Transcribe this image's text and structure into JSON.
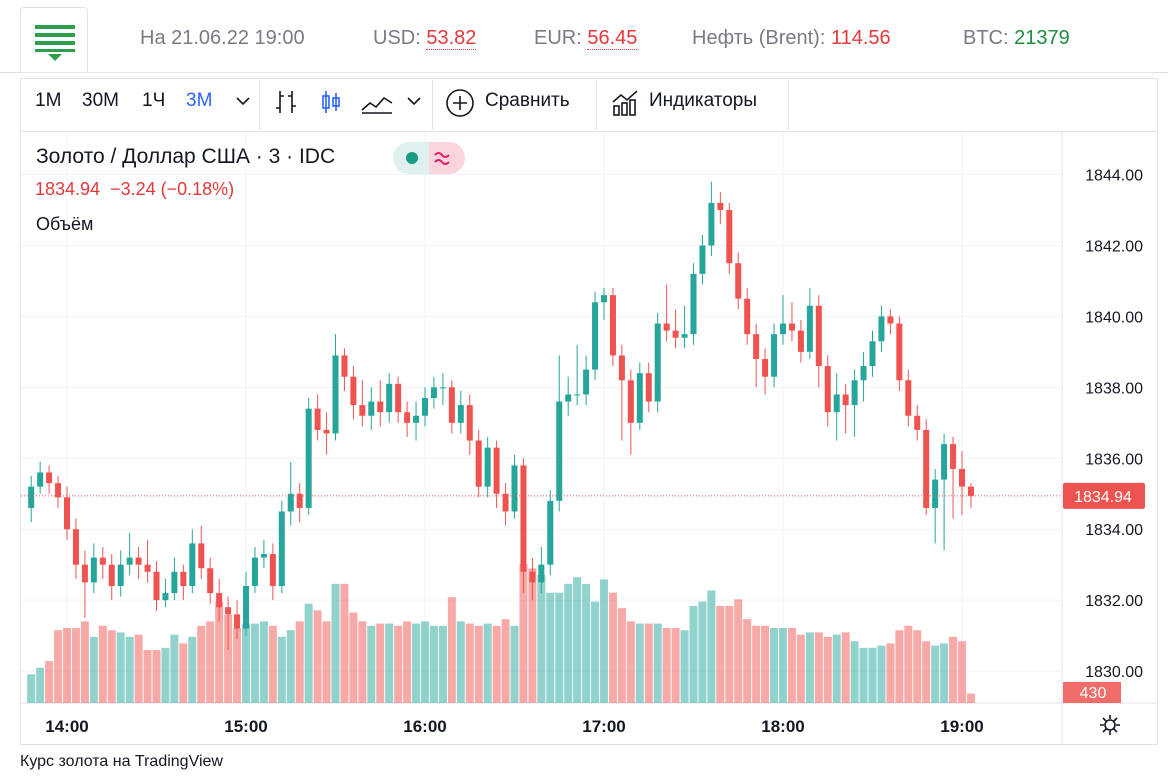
{
  "header": {
    "date": "На 21.06.22 19:00",
    "quotes": [
      {
        "label": "USD:",
        "value": "53.82"
      },
      {
        "label": "EUR:",
        "value": "56.45"
      },
      {
        "label": "Нефть (Brent):",
        "value": "114.56"
      },
      {
        "label": "BTC:",
        "value": "21379"
      }
    ]
  },
  "toolbar": {
    "intervals": [
      "1M",
      "30M",
      "1Ч",
      "3M"
    ],
    "compare": "Сравнить",
    "indicators": "Индикаторы"
  },
  "legend": {
    "symbol": "Золото / Доллар США · 3 · IDC",
    "change": "−3.24 (−0.18%)",
    "volume_title": "Объём"
  },
  "footer": "Курс золота на TradingView",
  "chart_data": {
    "type": "candlestick",
    "up_color": "#26a69a",
    "down_color": "#ef5350",
    "ylim": [
      1829.1,
      1845.2
    ],
    "yticks": [
      {
        "value": 1830,
        "label": "1830.00"
      },
      {
        "value": 1832,
        "label": "1832.00"
      },
      {
        "value": 1834,
        "label": "1834.00"
      },
      {
        "value": 1836,
        "label": "1836.00"
      },
      {
        "value": 1838,
        "label": "1838.00"
      },
      {
        "value": 1840,
        "label": "1840.00"
      },
      {
        "value": 1842,
        "label": "1842.00"
      },
      {
        "value": 1844,
        "label": "1844.00"
      }
    ],
    "xticks": [
      "14:00",
      "15:00",
      "16:00",
      "17:00",
      "18:00",
      "19:00"
    ],
    "vlim": [
      0,
      16000
    ],
    "x": [
      "13:48",
      "13:51",
      "13:54",
      "13:57",
      "14:00",
      "14:03",
      "14:06",
      "14:09",
      "14:12",
      "14:15",
      "14:18",
      "14:21",
      "14:24",
      "14:27",
      "14:30",
      "14:33",
      "14:36",
      "14:39",
      "14:42",
      "14:45",
      "14:48",
      "14:51",
      "14:54",
      "14:57",
      "15:00",
      "15:03",
      "15:06",
      "15:09",
      "15:12",
      "15:15",
      "15:18",
      "15:21",
      "15:24",
      "15:27",
      "15:30",
      "15:33",
      "15:36",
      "15:39",
      "15:42",
      "15:45",
      "15:48",
      "15:51",
      "15:54",
      "15:57",
      "16:00",
      "16:03",
      "16:06",
      "16:09",
      "16:12",
      "16:15",
      "16:18",
      "16:21",
      "16:24",
      "16:27",
      "16:30",
      "16:33",
      "16:36",
      "16:39",
      "16:42",
      "16:45",
      "16:48",
      "16:51",
      "16:54",
      "16:57",
      "17:00",
      "17:03",
      "17:06",
      "17:09",
      "17:12",
      "17:15",
      "17:18",
      "17:21",
      "17:24",
      "17:27",
      "17:30",
      "17:33",
      "17:36",
      "17:39",
      "17:42",
      "17:45",
      "17:48",
      "17:51",
      "17:54",
      "17:57",
      "18:00",
      "18:03",
      "18:06",
      "18:09",
      "18:12",
      "18:15",
      "18:18",
      "18:21",
      "18:24",
      "18:27",
      "18:30",
      "18:33",
      "18:36",
      "18:39",
      "18:42",
      "18:45",
      "18:48",
      "18:51",
      "18:54",
      "18:57",
      "19:00",
      "19:03"
    ],
    "candles": [
      [
        1834.6,
        1835.5,
        1834.2,
        1835.2
      ],
      [
        1835.2,
        1835.9,
        1835.0,
        1835.6
      ],
      [
        1835.6,
        1835.8,
        1835.0,
        1835.3
      ],
      [
        1835.3,
        1835.5,
        1834.6,
        1834.9
      ],
      [
        1834.9,
        1835.2,
        1833.7,
        1834.0
      ],
      [
        1834.0,
        1834.3,
        1832.6,
        1833.0
      ],
      [
        1833.0,
        1833.4,
        1831.5,
        1832.5
      ],
      [
        1832.5,
        1833.6,
        1832.2,
        1833.2
      ],
      [
        1833.2,
        1833.5,
        1832.6,
        1833.0
      ],
      [
        1833.0,
        1833.3,
        1832.0,
        1832.4
      ],
      [
        1832.4,
        1833.4,
        1832.1,
        1833.0
      ],
      [
        1833.0,
        1833.9,
        1832.7,
        1833.2
      ],
      [
        1833.2,
        1833.5,
        1832.6,
        1833.0
      ],
      [
        1833.0,
        1833.7,
        1832.5,
        1832.8
      ],
      [
        1832.8,
        1833.1,
        1831.7,
        1832.0
      ],
      [
        1832.0,
        1832.6,
        1831.8,
        1832.2
      ],
      [
        1832.2,
        1833.2,
        1832.0,
        1832.8
      ],
      [
        1832.8,
        1833.0,
        1832.0,
        1832.4
      ],
      [
        1832.4,
        1834.0,
        1832.2,
        1833.6
      ],
      [
        1833.6,
        1834.1,
        1832.6,
        1832.9
      ],
      [
        1832.9,
        1833.2,
        1831.9,
        1832.2
      ],
      [
        1832.2,
        1832.6,
        1831.4,
        1831.8
      ],
      [
        1831.8,
        1832.1,
        1830.6,
        1831.6
      ],
      [
        1831.6,
        1832.0,
        1830.9,
        1831.2
      ],
      [
        1831.2,
        1832.8,
        1831.0,
        1832.4
      ],
      [
        1832.4,
        1833.5,
        1832.2,
        1833.2
      ],
      [
        1833.2,
        1833.7,
        1832.9,
        1833.3
      ],
      [
        1833.3,
        1833.6,
        1832.0,
        1832.4
      ],
      [
        1832.4,
        1834.8,
        1832.2,
        1834.5
      ],
      [
        1834.5,
        1835.9,
        1834.1,
        1835.0
      ],
      [
        1835.0,
        1835.3,
        1834.2,
        1834.6
      ],
      [
        1834.6,
        1837.7,
        1834.4,
        1837.4
      ],
      [
        1837.4,
        1837.8,
        1836.5,
        1836.8
      ],
      [
        1836.8,
        1837.3,
        1836.1,
        1836.7
      ],
      [
        1836.7,
        1839.5,
        1836.5,
        1838.9
      ],
      [
        1838.9,
        1839.1,
        1837.9,
        1838.3
      ],
      [
        1838.3,
        1838.6,
        1837.1,
        1837.5
      ],
      [
        1837.5,
        1838.2,
        1836.9,
        1837.2
      ],
      [
        1837.2,
        1838.0,
        1836.8,
        1837.6
      ],
      [
        1837.6,
        1838.2,
        1836.9,
        1837.3
      ],
      [
        1837.3,
        1838.4,
        1837.0,
        1838.1
      ],
      [
        1838.1,
        1838.3,
        1837.0,
        1837.3
      ],
      [
        1837.3,
        1837.6,
        1836.6,
        1837.0
      ],
      [
        1837.0,
        1837.6,
        1836.5,
        1837.2
      ],
      [
        1837.2,
        1838.0,
        1836.9,
        1837.7
      ],
      [
        1837.7,
        1838.3,
        1837.4,
        1838.0
      ],
      [
        1838.0,
        1838.4,
        1837.5,
        1838.0
      ],
      [
        1838.0,
        1838.2,
        1836.7,
        1837.0
      ],
      [
        1837.0,
        1837.9,
        1836.7,
        1837.5
      ],
      [
        1837.5,
        1837.8,
        1836.1,
        1836.5
      ],
      [
        1836.5,
        1836.8,
        1834.9,
        1835.2
      ],
      [
        1835.2,
        1836.6,
        1834.9,
        1836.3
      ],
      [
        1836.3,
        1836.5,
        1834.6,
        1835.0
      ],
      [
        1835.0,
        1835.3,
        1834.1,
        1834.5
      ],
      [
        1834.5,
        1836.1,
        1834.3,
        1835.8
      ],
      [
        1835.8,
        1836.0,
        1832.2,
        1832.8
      ],
      [
        1832.8,
        1833.2,
        1832.0,
        1832.5
      ],
      [
        1832.5,
        1833.5,
        1832.2,
        1833.0
      ],
      [
        1833.0,
        1835.1,
        1832.7,
        1834.8
      ],
      [
        1834.8,
        1838.9,
        1834.5,
        1837.6
      ],
      [
        1837.6,
        1838.3,
        1837.2,
        1837.8
      ],
      [
        1837.8,
        1839.2,
        1837.5,
        1837.8
      ],
      [
        1837.8,
        1838.9,
        1837.5,
        1838.5
      ],
      [
        1838.5,
        1840.7,
        1838.2,
        1840.4
      ],
      [
        1840.4,
        1840.8,
        1839.9,
        1840.6
      ],
      [
        1840.6,
        1840.8,
        1838.6,
        1838.9
      ],
      [
        1838.9,
        1839.2,
        1836.5,
        1838.2
      ],
      [
        1838.2,
        1838.5,
        1836.1,
        1837.0
      ],
      [
        1837.0,
        1838.7,
        1836.8,
        1838.4
      ],
      [
        1838.4,
        1838.7,
        1837.3,
        1837.6
      ],
      [
        1837.6,
        1840.1,
        1837.3,
        1839.8
      ],
      [
        1839.8,
        1840.9,
        1839.3,
        1839.6
      ],
      [
        1839.6,
        1840.2,
        1839.1,
        1839.4
      ],
      [
        1839.4,
        1840.3,
        1839.1,
        1839.5
      ],
      [
        1839.5,
        1841.5,
        1839.2,
        1841.2
      ],
      [
        1841.2,
        1842.3,
        1840.9,
        1842.0
      ],
      [
        1842.0,
        1843.8,
        1841.7,
        1843.2
      ],
      [
        1843.2,
        1843.5,
        1842.6,
        1843.0
      ],
      [
        1843.0,
        1843.2,
        1841.2,
        1841.5
      ],
      [
        1841.5,
        1841.8,
        1840.2,
        1840.5
      ],
      [
        1840.5,
        1840.8,
        1839.2,
        1839.5
      ],
      [
        1839.5,
        1839.8,
        1838.0,
        1838.8
      ],
      [
        1838.8,
        1839.1,
        1837.8,
        1838.3
      ],
      [
        1838.3,
        1839.8,
        1838.0,
        1839.5
      ],
      [
        1839.5,
        1840.6,
        1839.2,
        1839.8
      ],
      [
        1839.8,
        1840.4,
        1839.3,
        1839.6
      ],
      [
        1839.6,
        1839.9,
        1838.7,
        1839.0
      ],
      [
        1839.0,
        1840.8,
        1838.8,
        1840.3
      ],
      [
        1840.3,
        1840.6,
        1838.0,
        1838.6
      ],
      [
        1838.6,
        1838.9,
        1836.9,
        1837.3
      ],
      [
        1837.3,
        1838.4,
        1836.5,
        1837.8
      ],
      [
        1837.8,
        1838.1,
        1836.7,
        1837.5
      ],
      [
        1837.5,
        1838.5,
        1836.6,
        1838.2
      ],
      [
        1838.2,
        1839.0,
        1837.6,
        1838.6
      ],
      [
        1838.6,
        1839.6,
        1838.3,
        1839.3
      ],
      [
        1839.3,
        1840.3,
        1839.0,
        1840.0
      ],
      [
        1840.0,
        1840.2,
        1839.5,
        1839.8
      ],
      [
        1839.8,
        1840.0,
        1837.9,
        1838.2
      ],
      [
        1838.2,
        1838.5,
        1836.9,
        1837.2
      ],
      [
        1837.2,
        1837.5,
        1836.5,
        1836.8
      ],
      [
        1836.8,
        1837.1,
        1834.4,
        1834.6
      ],
      [
        1834.6,
        1835.7,
        1833.6,
        1835.4
      ],
      [
        1835.4,
        1836.7,
        1833.4,
        1836.4
      ],
      [
        1836.4,
        1836.6,
        1834.3,
        1835.7
      ],
      [
        1835.7,
        1836.2,
        1834.4,
        1835.2
      ],
      [
        1835.2,
        1835.3,
        1834.6,
        1834.94
      ]
    ],
    "volumes": [
      1300,
      1600,
      1900,
      3300,
      3400,
      3400,
      3700,
      3000,
      3500,
      3300,
      3200,
      3000,
      3100,
      2400,
      2400,
      2500,
      3100,
      2700,
      3000,
      3500,
      3700,
      4600,
      4000,
      3400,
      3600,
      3600,
      3700,
      3500,
      3000,
      3300,
      3700,
      4500,
      4200,
      3700,
      5400,
      5400,
      4100,
      3700,
      3500,
      3600,
      3600,
      3500,
      3700,
      3600,
      3700,
      3500,
      3500,
      4800,
      3700,
      3600,
      3500,
      3600,
      3500,
      3800,
      3500,
      6300,
      6100,
      5800,
      5000,
      5000,
      5400,
      5700,
      5400,
      4600,
      5600,
      5000,
      4300,
      3700,
      3600,
      3600,
      3600,
      3400,
      3400,
      3300,
      4400,
      4600,
      5100,
      4400,
      4400,
      4700,
      3800,
      3500,
      3500,
      3400,
      3400,
      3400,
      3100,
      3200,
      3200,
      3000,
      3100,
      3200,
      2800,
      2500,
      2500,
      2600,
      2700,
      3300,
      3500,
      3300,
      2800,
      2600,
      2700,
      3000,
      2800,
      430
    ]
  }
}
